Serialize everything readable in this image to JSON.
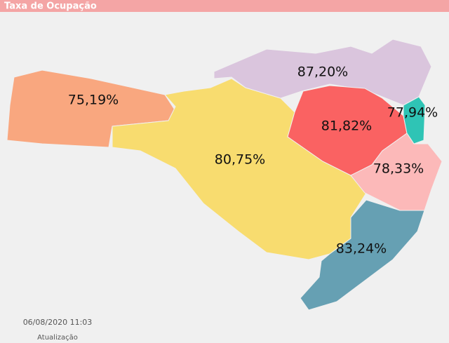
{
  "header": {
    "title": "Taxa de Ocupação"
  },
  "regions": [
    {
      "label": "75,19%",
      "color": "#f9a77f"
    },
    {
      "label": "80,75%",
      "color": "#f8dc6f"
    },
    {
      "label": "87,20%",
      "color": "#dac5dd"
    },
    {
      "label": "81,82%",
      "color": "#fa6262"
    },
    {
      "label": "77,94%",
      "color": "#2fc4b5"
    },
    {
      "label": "78,33%",
      "color": "#fcb9b9"
    },
    {
      "label": "83,24%",
      "color": "#66a0b3"
    }
  ],
  "footer": {
    "timestamp": "06/08/2020 11:03",
    "caption": "Atualização"
  }
}
